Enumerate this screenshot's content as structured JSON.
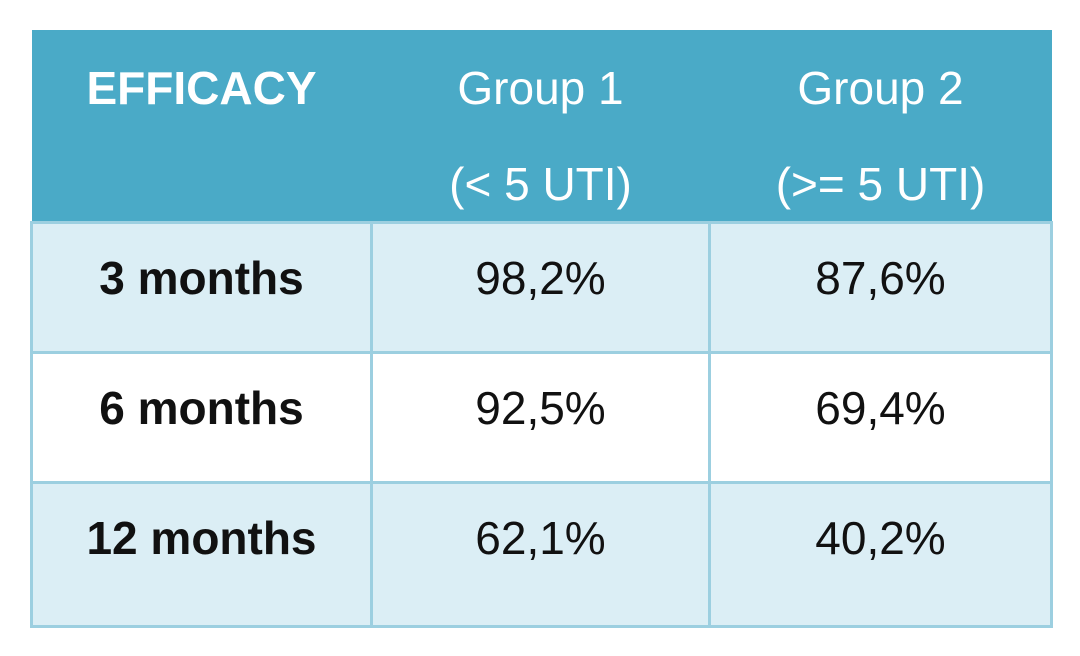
{
  "table": {
    "header": {
      "label": "EFFICACY",
      "groups": [
        {
          "name": "Group 1",
          "criterion": "(< 5 UTI)"
        },
        {
          "name": "Group 2",
          "criterion": "(>= 5 UTI)"
        }
      ]
    },
    "rows": [
      {
        "label": "3 months",
        "values": [
          "98,2%",
          "87,6%"
        ]
      },
      {
        "label": "6 months",
        "values": [
          "92,5%",
          "69,4%"
        ]
      },
      {
        "label": "12 months",
        "values": [
          "62,1%",
          "40,2%"
        ]
      }
    ],
    "colors": {
      "header_bg": "#4aaac7",
      "band_bg": "#dbeef5",
      "border": "#9ccfe0"
    }
  }
}
